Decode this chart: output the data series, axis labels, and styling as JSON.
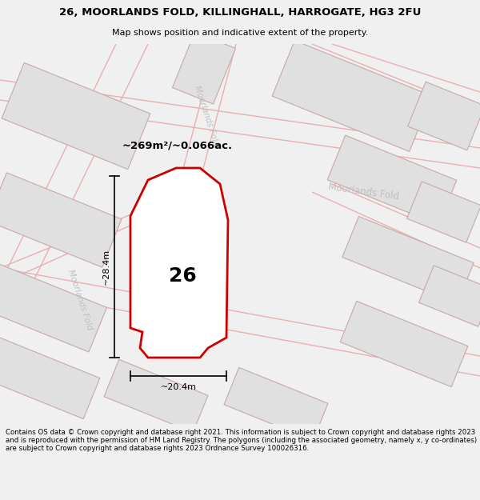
{
  "title": "26, MOORLANDS FOLD, KILLINGHALL, HARROGATE, HG3 2FU",
  "subtitle": "Map shows position and indicative extent of the property.",
  "footer": "Contains OS data © Crown copyright and database right 2021. This information is subject to Crown copyright and database rights 2023 and is reproduced with the permission of HM Land Registry. The polygons (including the associated geometry, namely x, y co-ordinates) are subject to Crown copyright and database rights 2023 Ordnance Survey 100026316.",
  "area_label": "~269m²/~0.066ac.",
  "width_label": "~20.4m",
  "height_label": "~28.4m",
  "plot_number": "26",
  "plot_outline_color": "#cc0000",
  "road_label_color": "#c0c0c0",
  "building_fill": "#e0e0e0",
  "building_stroke": "#c8a8a8",
  "road_stroke": "#e8b0b0",
  "bg_color": "#f0f0f0"
}
